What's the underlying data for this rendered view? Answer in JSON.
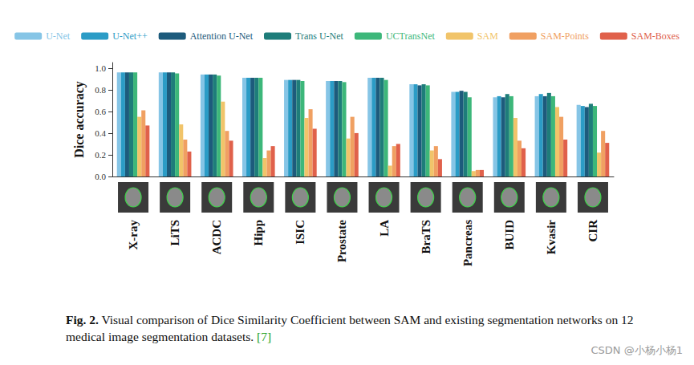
{
  "chart_data": {
    "type": "bar",
    "y_label": "Dice accuracy",
    "categories": [
      "X-ray",
      "LiTS",
      "ACDC",
      "Hipp",
      "ISIC",
      "Prostate",
      "LA",
      "BraTS",
      "Pancreas",
      "BUID",
      "Kvasir",
      "CIR"
    ],
    "series": [
      {
        "name": "U-Net",
        "color": "#86c5e6",
        "values": [
          0.96,
          0.96,
          0.94,
          0.91,
          0.89,
          0.88,
          0.91,
          0.85,
          0.78,
          0.73,
          0.74,
          0.66
        ]
      },
      {
        "name": "U-Net++",
        "color": "#2b9cc6",
        "values": [
          0.96,
          0.96,
          0.94,
          0.91,
          0.89,
          0.88,
          0.91,
          0.85,
          0.78,
          0.74,
          0.76,
          0.65
        ]
      },
      {
        "name": "Attention U-Net",
        "color": "#1d5b7c",
        "values": [
          0.96,
          0.96,
          0.94,
          0.91,
          0.89,
          0.88,
          0.91,
          0.84,
          0.79,
          0.73,
          0.74,
          0.64
        ]
      },
      {
        "name": "Trans U-Net",
        "color": "#1e7d7a",
        "values": [
          0.96,
          0.96,
          0.94,
          0.91,
          0.89,
          0.88,
          0.91,
          0.85,
          0.78,
          0.76,
          0.77,
          0.67
        ]
      },
      {
        "name": "UCTransNet",
        "color": "#3db77a",
        "values": [
          0.96,
          0.95,
          0.93,
          0.91,
          0.88,
          0.87,
          0.89,
          0.84,
          0.73,
          0.74,
          0.74,
          0.65
        ]
      },
      {
        "name": "SAM",
        "color": "#f1c46a",
        "values": [
          0.55,
          0.48,
          0.69,
          0.17,
          0.54,
          0.35,
          0.1,
          0.24,
          0.05,
          0.54,
          0.64,
          0.22
        ]
      },
      {
        "name": "SAM-Points",
        "color": "#f0a062",
        "values": [
          0.61,
          0.34,
          0.42,
          0.24,
          0.62,
          0.55,
          0.28,
          0.28,
          0.06,
          0.33,
          0.55,
          0.42
        ]
      },
      {
        "name": "SAM-Boxes",
        "color": "#e0614b",
        "values": [
          0.47,
          0.23,
          0.33,
          0.28,
          0.44,
          0.4,
          0.3,
          0.16,
          0.06,
          0.26,
          0.34,
          0.31
        ]
      }
    ],
    "ylim": [
      0,
      1.05
    ],
    "yticks": [
      {
        "value": 0,
        "label": "0.0"
      },
      {
        "value": 0.2,
        "label": "0.2"
      },
      {
        "value": 0.4,
        "label": "0.4"
      },
      {
        "value": 0.6,
        "label": "0.6"
      },
      {
        "value": 0.8,
        "label": "0.8"
      },
      {
        "value": 1.0,
        "label": "1.0"
      }
    ],
    "grid": false,
    "legend": "top"
  },
  "caption": {
    "label": "Fig. 2.",
    "text": "Visual comparison of Dice Similarity Coefficient between SAM and existing segmentation networks on 12 medical image segmentation datasets.",
    "reference": "[7]"
  },
  "watermark": "CSDN @小杨小杨1"
}
